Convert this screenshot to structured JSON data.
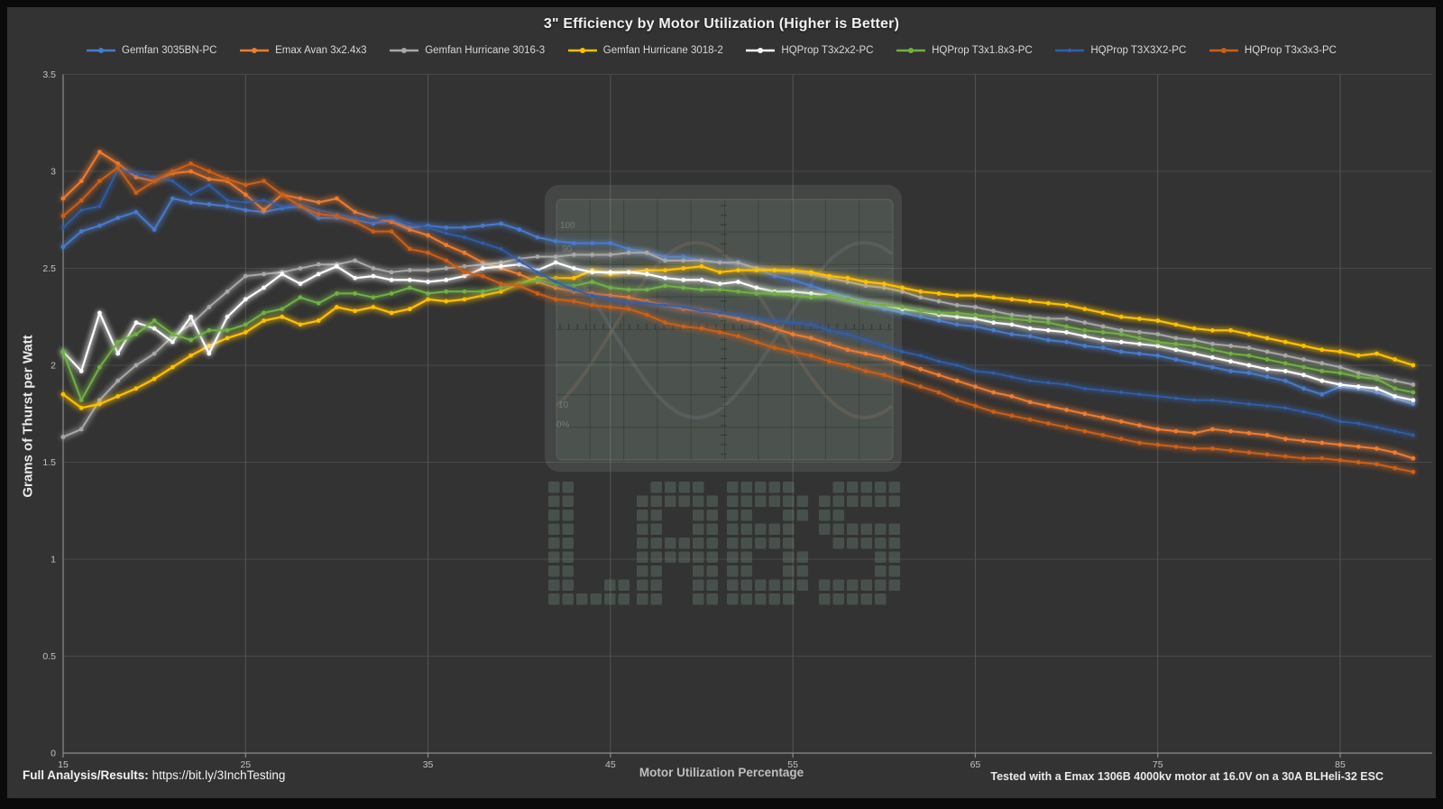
{
  "page": {
    "background": "#333333",
    "frame_color": "#0a0a0a"
  },
  "footer": {
    "left_label": "Full Analysis/Results:",
    "left_url": "https://bit.ly/3InchTesting",
    "right_note": "Tested with a Emax 1306B 4000kv motor at 16.0V on a 30A BLHeli-32 ESC"
  },
  "watermark": {
    "text": "LABS",
    "screen_labels": [
      "100",
      "90",
      "10",
      "0%"
    ]
  },
  "chart_data": {
    "type": "line",
    "title": "3\" Efficiency by Motor Utilization (Higher is Better)",
    "xlabel": "Motor Utilization Percentage",
    "ylabel": "Grams of Thurst per Watt",
    "xlim": [
      15,
      89
    ],
    "ylim": [
      0,
      3.5
    ],
    "x_start": 15,
    "x_step": 1,
    "x_ticks": [
      15,
      25,
      35,
      45,
      55,
      65,
      75,
      85
    ],
    "y_ticks": [
      0,
      0.5,
      1,
      1.5,
      2,
      2.5,
      3,
      3.5
    ],
    "grid": true,
    "legend_position": "top",
    "series": [
      {
        "name": "Gemfan 3035BN-PC",
        "color": "#4A7AC8",
        "marker_radius": 2.4,
        "line_width": 2,
        "values": [
          2.61,
          2.69,
          2.72,
          2.76,
          2.79,
          2.7,
          2.86,
          2.84,
          2.83,
          2.82,
          2.8,
          2.79,
          2.81,
          2.82,
          2.76,
          2.76,
          2.75,
          2.73,
          2.75,
          2.71,
          2.72,
          2.71,
          2.71,
          2.72,
          2.73,
          2.7,
          2.66,
          2.64,
          2.63,
          2.63,
          2.63,
          2.6,
          2.58,
          2.56,
          2.56,
          2.54,
          2.53,
          2.52,
          2.5,
          2.46,
          2.44,
          2.41,
          2.38,
          2.35,
          2.32,
          2.29,
          2.27,
          2.25,
          2.23,
          2.21,
          2.2,
          2.18,
          2.16,
          2.15,
          2.13,
          2.12,
          2.1,
          2.09,
          2.07,
          2.06,
          2.05,
          2.03,
          2.01,
          1.99,
          1.97,
          1.96,
          1.94,
          1.92,
          1.88,
          1.85,
          1.89,
          1.88,
          1.86,
          1.83,
          1.8
        ]
      },
      {
        "name": "Emax Avan 3x2.4x3",
        "color": "#ED7D31",
        "marker_radius": 2.4,
        "line_width": 2,
        "values": [
          2.86,
          2.95,
          3.1,
          3.04,
          2.97,
          2.95,
          2.99,
          3.0,
          2.96,
          2.95,
          2.88,
          2.8,
          2.88,
          2.86,
          2.84,
          2.86,
          2.79,
          2.76,
          2.74,
          2.7,
          2.67,
          2.62,
          2.58,
          2.53,
          2.5,
          2.47,
          2.43,
          2.4,
          2.38,
          2.37,
          2.36,
          2.35,
          2.33,
          2.31,
          2.29,
          2.28,
          2.26,
          2.24,
          2.22,
          2.19,
          2.16,
          2.14,
          2.11,
          2.08,
          2.06,
          2.04,
          2.01,
          1.98,
          1.95,
          1.92,
          1.89,
          1.86,
          1.84,
          1.81,
          1.79,
          1.77,
          1.75,
          1.73,
          1.71,
          1.69,
          1.67,
          1.66,
          1.65,
          1.67,
          1.66,
          1.65,
          1.64,
          1.62,
          1.61,
          1.6,
          1.59,
          1.58,
          1.57,
          1.55,
          1.52
        ]
      },
      {
        "name": "Gemfan Hurricane 3016-3",
        "color": "#A8A8A8",
        "marker_radius": 2.4,
        "line_width": 2,
        "values": [
          1.63,
          1.67,
          1.82,
          1.92,
          2.0,
          2.06,
          2.15,
          2.21,
          2.3,
          2.38,
          2.46,
          2.47,
          2.48,
          2.5,
          2.52,
          2.52,
          2.54,
          2.5,
          2.48,
          2.49,
          2.49,
          2.5,
          2.51,
          2.52,
          2.53,
          2.55,
          2.56,
          2.56,
          2.57,
          2.57,
          2.57,
          2.58,
          2.58,
          2.54,
          2.54,
          2.54,
          2.53,
          2.53,
          2.5,
          2.49,
          2.48,
          2.47,
          2.45,
          2.43,
          2.41,
          2.4,
          2.38,
          2.35,
          2.33,
          2.31,
          2.3,
          2.28,
          2.26,
          2.25,
          2.24,
          2.24,
          2.22,
          2.2,
          2.18,
          2.17,
          2.16,
          2.14,
          2.13,
          2.11,
          2.1,
          2.09,
          2.07,
          2.05,
          2.03,
          2.01,
          1.99,
          1.96,
          1.94,
          1.92,
          1.9
        ]
      },
      {
        "name": "Gemfan Hurricane 3018-2",
        "color": "#FFC000",
        "marker_radius": 2.4,
        "line_width": 2.2,
        "values": [
          1.85,
          1.78,
          1.8,
          1.84,
          1.88,
          1.93,
          1.99,
          2.05,
          2.1,
          2.14,
          2.17,
          2.23,
          2.25,
          2.21,
          2.23,
          2.3,
          2.28,
          2.3,
          2.27,
          2.29,
          2.34,
          2.33,
          2.34,
          2.36,
          2.38,
          2.42,
          2.45,
          2.45,
          2.45,
          2.49,
          2.47,
          2.48,
          2.49,
          2.49,
          2.5,
          2.51,
          2.48,
          2.49,
          2.49,
          2.49,
          2.49,
          2.48,
          2.46,
          2.45,
          2.43,
          2.42,
          2.4,
          2.38,
          2.37,
          2.36,
          2.36,
          2.35,
          2.34,
          2.33,
          2.32,
          2.31,
          2.29,
          2.27,
          2.25,
          2.24,
          2.23,
          2.21,
          2.19,
          2.18,
          2.18,
          2.16,
          2.14,
          2.12,
          2.1,
          2.08,
          2.07,
          2.05,
          2.06,
          2.03,
          2.0
        ]
      },
      {
        "name": "HQProp T3x2x2-PC",
        "color": "#FFFFFF",
        "marker_radius": 2.4,
        "line_width": 2.2,
        "values": [
          2.07,
          1.97,
          2.27,
          2.06,
          2.22,
          2.19,
          2.12,
          2.25,
          2.06,
          2.25,
          2.34,
          2.4,
          2.47,
          2.42,
          2.47,
          2.51,
          2.45,
          2.46,
          2.44,
          2.44,
          2.43,
          2.44,
          2.46,
          2.5,
          2.51,
          2.52,
          2.49,
          2.53,
          2.5,
          2.48,
          2.48,
          2.48,
          2.47,
          2.45,
          2.44,
          2.44,
          2.42,
          2.43,
          2.4,
          2.38,
          2.38,
          2.37,
          2.36,
          2.34,
          2.32,
          2.31,
          2.29,
          2.28,
          2.26,
          2.25,
          2.24,
          2.22,
          2.21,
          2.19,
          2.18,
          2.17,
          2.15,
          2.13,
          2.12,
          2.11,
          2.1,
          2.08,
          2.06,
          2.04,
          2.02,
          2.0,
          1.98,
          1.97,
          1.95,
          1.92,
          1.9,
          1.89,
          1.88,
          1.84,
          1.82
        ]
      },
      {
        "name": "HQProp T3x1.8x3-PC",
        "color": "#73AE48",
        "marker_radius": 2.4,
        "line_width": 2,
        "values": [
          2.07,
          1.82,
          1.99,
          2.12,
          2.16,
          2.23,
          2.16,
          2.13,
          2.18,
          2.18,
          2.21,
          2.27,
          2.29,
          2.35,
          2.32,
          2.37,
          2.37,
          2.35,
          2.37,
          2.4,
          2.37,
          2.38,
          2.38,
          2.38,
          2.4,
          2.42,
          2.44,
          2.42,
          2.41,
          2.43,
          2.4,
          2.39,
          2.39,
          2.41,
          2.4,
          2.39,
          2.39,
          2.38,
          2.37,
          2.37,
          2.36,
          2.35,
          2.36,
          2.34,
          2.32,
          2.31,
          2.3,
          2.28,
          2.27,
          2.27,
          2.26,
          2.25,
          2.24,
          2.23,
          2.22,
          2.2,
          2.18,
          2.17,
          2.16,
          2.14,
          2.12,
          2.11,
          2.1,
          2.08,
          2.06,
          2.05,
          2.03,
          2.01,
          1.99,
          1.97,
          1.96,
          1.94,
          1.93,
          1.88,
          1.86
        ]
      },
      {
        "name": "HQProp T3X3X2-PC",
        "color": "#335FA8",
        "marker_radius": 1.8,
        "line_width": 1.6,
        "values": [
          2.71,
          2.8,
          2.82,
          3.01,
          2.99,
          2.97,
          2.95,
          2.88,
          2.93,
          2.85,
          2.84,
          2.85,
          2.82,
          2.83,
          2.8,
          2.78,
          2.76,
          2.75,
          2.76,
          2.73,
          2.71,
          2.68,
          2.66,
          2.63,
          2.6,
          2.54,
          2.48,
          2.43,
          2.39,
          2.36,
          2.34,
          2.32,
          2.32,
          2.31,
          2.3,
          2.28,
          2.27,
          2.26,
          2.24,
          2.23,
          2.22,
          2.21,
          2.18,
          2.16,
          2.13,
          2.1,
          2.07,
          2.05,
          2.02,
          2.0,
          1.97,
          1.96,
          1.94,
          1.92,
          1.91,
          1.9,
          1.88,
          1.87,
          1.86,
          1.85,
          1.84,
          1.83,
          1.82,
          1.82,
          1.81,
          1.8,
          1.79,
          1.78,
          1.76,
          1.74,
          1.71,
          1.7,
          1.68,
          1.66,
          1.64
        ]
      },
      {
        "name": "HQProp T3x3x3-PC",
        "color": "#C9601A",
        "marker_radius": 2.4,
        "line_width": 2,
        "values": [
          2.77,
          2.85,
          2.95,
          3.02,
          2.89,
          2.95,
          3.0,
          3.04,
          3.0,
          2.96,
          2.93,
          2.95,
          2.88,
          2.82,
          2.78,
          2.77,
          2.74,
          2.69,
          2.69,
          2.6,
          2.58,
          2.54,
          2.48,
          2.46,
          2.42,
          2.41,
          2.37,
          2.34,
          2.33,
          2.31,
          2.3,
          2.29,
          2.26,
          2.22,
          2.2,
          2.19,
          2.17,
          2.15,
          2.12,
          2.09,
          2.07,
          2.05,
          2.02,
          2.0,
          1.97,
          1.95,
          1.92,
          1.89,
          1.86,
          1.82,
          1.79,
          1.76,
          1.74,
          1.72,
          1.7,
          1.68,
          1.66,
          1.64,
          1.62,
          1.6,
          1.59,
          1.58,
          1.57,
          1.57,
          1.56,
          1.55,
          1.54,
          1.53,
          1.52,
          1.52,
          1.51,
          1.5,
          1.49,
          1.47,
          1.45
        ]
      }
    ]
  }
}
